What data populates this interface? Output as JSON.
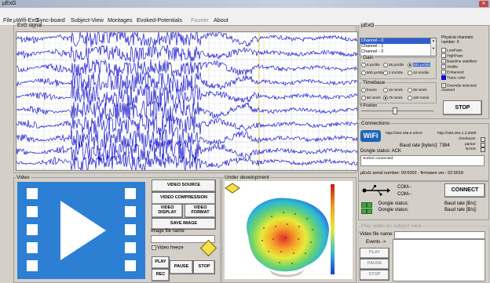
{
  "window": {
    "title": "µExG"
  },
  "menu": [
    "File",
    "µWifi-ExG",
    "Sync-board",
    "Subject-View",
    "Montages",
    "Evoked-Potentials",
    "Fourier",
    "About"
  ],
  "exg_signal": {
    "title": "ExG signal",
    "trace_color": "#1a1acc"
  },
  "uexg": {
    "title": "µExG",
    "channels": [
      "Channel - 0",
      "Channel - 1",
      "Channel - 2"
    ],
    "physical_channels_label": "Physical channels: number: 0",
    "gain": {
      "title": "Gain",
      "options": [
        "5 µV/div",
        "25 µV/div",
        "300 µV/div",
        "500 µV/div",
        "2 mV/div",
        "10 mV/div"
      ],
      "selected": "300 µV/div"
    },
    "timebase": {
      "title": "Timebase",
      "options": [
        "freeze",
        "10 mm/s",
        "25 mm/s",
        "50 mm/s",
        "75 mm/s",
        "100 mm/s"
      ],
      "selected": "75 mm/s"
    },
    "y_position": "Y-Position",
    "checks": [
      {
        "label": "LowPass",
        "checked": false
      },
      {
        "label": "HighPass",
        "checked": false
      },
      {
        "label": "Baseline stabilizer",
        "checked": true
      },
      {
        "label": "Visible",
        "checked": true
      },
      {
        "label": "Enhanced",
        "checked": false
      },
      {
        "label": "Trace color",
        "checked": false
      },
      {
        "label": "Override selected channel",
        "checked": true
      }
    ],
    "stop": "STOP"
  },
  "connections": {
    "title": "Connections",
    "url1": "http://192.168.0.100:0",
    "url2": "http://169.254.1.1:2000",
    "checksum": "checksum",
    "parser": "parser",
    "nack": "NACK",
    "baud": "Baud rate [byte/s]: 7384",
    "dongle_status": "Dongle status: ACK",
    "log": "Socket connected.",
    "serial": "µExG serial number: 00:0002 - firmware ver.: 02:0018",
    "com1": "COM--",
    "com2": "COM--",
    "connect": "CONNECT",
    "rows": [
      {
        "label": "Dongle status:",
        "baud": "Baud rate [B/s]:"
      },
      {
        "label": "Dongle status:",
        "baud": "Baud rate [B/s]:"
      }
    ]
  },
  "video": {
    "title": "Video",
    "buttons": {
      "source": "VIDEO SOURCE",
      "compression": "VIDEO COMPRESSION",
      "display": "VIDEO DISPLAY",
      "format": "VIDEO FORMAT",
      "save": "SAVE IMAGE",
      "play": "PLAY",
      "rec": "REC",
      "pause": "PAUSE",
      "stop": "STOP"
    },
    "image_file_name": "Image file name",
    "freeze": "Video freeze",
    "freeze_checked": true
  },
  "development": {
    "title": "Under development"
  },
  "play_video": {
    "title": "Play video on subject view",
    "file_name": "Video file name:",
    "events": "Events ->",
    "play": "PLAY",
    "pause": "PAUSE",
    "stop": "STOP"
  }
}
